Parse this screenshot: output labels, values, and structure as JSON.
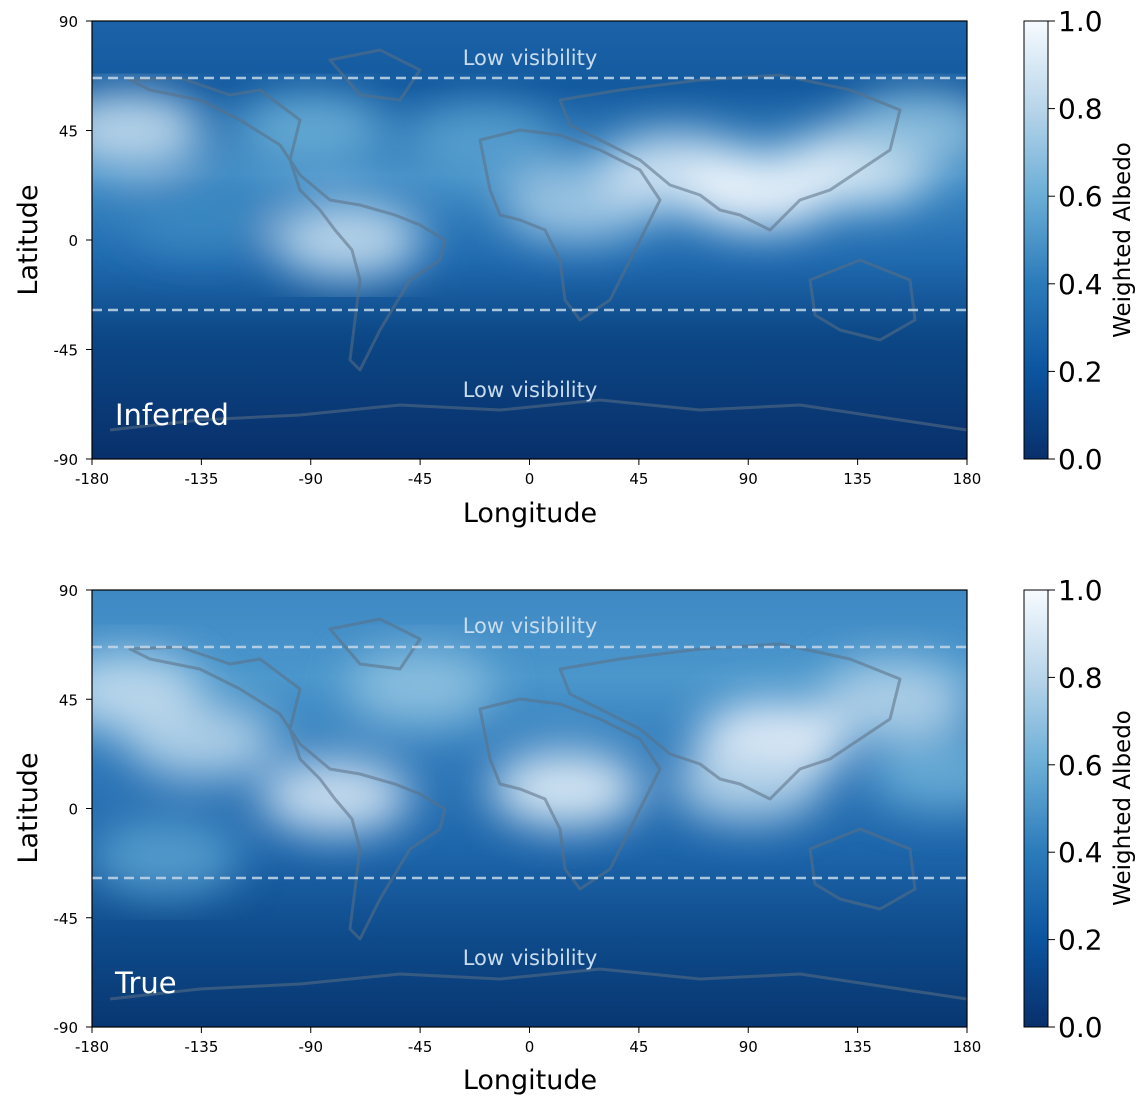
{
  "chart_data": [
    {
      "type": "heatmap",
      "panel_label": "Inferred",
      "xlabel": "Longitude",
      "ylabel": "Latitude",
      "xlim": [
        -180,
        180
      ],
      "ylim": [
        -90,
        90
      ],
      "x_ticks": [
        "-180",
        "-135",
        "-90",
        "-45",
        "0",
        "45",
        "90",
        "135",
        "180"
      ],
      "y_ticks": [
        "90",
        "45",
        "0",
        "-45",
        "-90"
      ],
      "colorbar": {
        "label": "Weighted Albedo",
        "range": [
          0,
          1
        ],
        "ticks": [
          "0.0",
          "0.2",
          "0.4",
          "0.6",
          "0.8",
          "1.0"
        ],
        "colormap": "Blues_r"
      },
      "visibility_lines_lat": [
        67,
        -29
      ],
      "annotations": [
        "Low visibility",
        "Low visibility"
      ],
      "bright_regions": [
        {
          "lon": -165,
          "lat": 45,
          "value": 0.85
        },
        {
          "lon": -90,
          "lat": 45,
          "value": 0.6
        },
        {
          "lon": -75,
          "lat": 0,
          "value": 0.85
        },
        {
          "lon": -20,
          "lat": 40,
          "value": 0.55
        },
        {
          "lon": 20,
          "lat": 15,
          "value": 0.75
        },
        {
          "lon": 60,
          "lat": 28,
          "value": 0.9
        },
        {
          "lon": 95,
          "lat": 20,
          "value": 1.0
        },
        {
          "lon": 135,
          "lat": 30,
          "value": 0.95
        },
        {
          "lon": 160,
          "lat": 45,
          "value": 0.7
        },
        {
          "lon": -135,
          "lat": 10,
          "value": 0.45
        }
      ]
    },
    {
      "type": "heatmap",
      "panel_label": "True",
      "xlabel": "Longitude",
      "ylabel": "Latitude",
      "xlim": [
        -180,
        180
      ],
      "ylim": [
        -90,
        90
      ],
      "x_ticks": [
        "-180",
        "-135",
        "-90",
        "-45",
        "0",
        "45",
        "90",
        "135",
        "180"
      ],
      "y_ticks": [
        "90",
        "45",
        "0",
        "-45",
        "-90"
      ],
      "colorbar": {
        "label": "Weighted Albedo",
        "range": [
          0,
          1
        ],
        "ticks": [
          "0.0",
          "0.2",
          "0.4",
          "0.6",
          "0.8",
          "1.0"
        ],
        "colormap": "Blues_r"
      },
      "visibility_lines_lat": [
        67,
        -29
      ],
      "annotations": [
        "Low visibility",
        "Low visibility"
      ],
      "bright_regions": [
        {
          "lon": -165,
          "lat": 48,
          "value": 0.85
        },
        {
          "lon": -135,
          "lat": 28,
          "value": 0.8
        },
        {
          "lon": -80,
          "lat": 5,
          "value": 0.9
        },
        {
          "lon": -45,
          "lat": 50,
          "value": 0.7
        },
        {
          "lon": 15,
          "lat": 8,
          "value": 0.95
        },
        {
          "lon": 100,
          "lat": 28,
          "value": 1.0
        },
        {
          "lon": 90,
          "lat": 10,
          "value": 0.8
        },
        {
          "lon": 150,
          "lat": 45,
          "value": 0.8
        },
        {
          "lon": 170,
          "lat": 15,
          "value": 0.6
        },
        {
          "lon": -150,
          "lat": -20,
          "value": 0.55
        }
      ]
    }
  ]
}
